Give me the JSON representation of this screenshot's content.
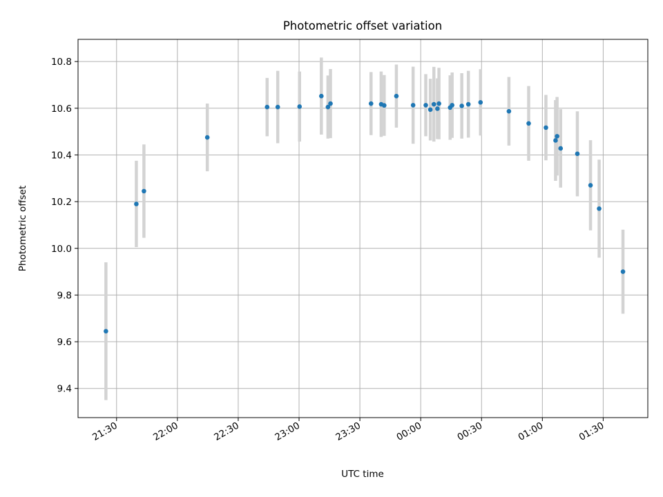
{
  "chart_data": {
    "type": "scatter",
    "title": "Photometric offset variation",
    "xlabel": "UTC time",
    "ylabel": "Photometric offset",
    "x_unit": "HH:MM UTC (night spans midnight)",
    "xlim": [
      "21:11",
      "01:52"
    ],
    "ylim": [
      9.275,
      10.895
    ],
    "x_ticks": [
      "21:30",
      "22:00",
      "22:30",
      "23:00",
      "23:30",
      "00:00",
      "00:30",
      "01:00",
      "01:30"
    ],
    "y_ticks": [
      9.4,
      9.6,
      9.8,
      10.0,
      10.2,
      10.4,
      10.6,
      10.8
    ],
    "y_tick_labels": [
      "9.4",
      "9.6",
      "9.8",
      "10.0",
      "10.2",
      "10.4",
      "10.6",
      "10.8"
    ],
    "grid": true,
    "colors": {
      "point": "#1f77b4",
      "errorbar": "#d3d3d3",
      "grid": "#b0b0b0"
    },
    "series": [
      {
        "points": [
          {
            "t": "21:24:45",
            "y": 9.645,
            "err": 0.295
          },
          {
            "t": "21:39:45",
            "y": 10.19,
            "err": 0.185
          },
          {
            "t": "21:43:30",
            "y": 10.245,
            "err": 0.2
          },
          {
            "t": "22:14:45",
            "y": 10.475,
            "err": 0.145
          },
          {
            "t": "22:44:15",
            "y": 10.605,
            "err": 0.125
          },
          {
            "t": "22:49:30",
            "y": 10.605,
            "err": 0.155
          },
          {
            "t": "23:00:15",
            "y": 10.607,
            "err": 0.15
          },
          {
            "t": "23:11:00",
            "y": 10.652,
            "err": 0.165
          },
          {
            "t": "23:14:15",
            "y": 10.605,
            "err": 0.135
          },
          {
            "t": "23:15:30",
            "y": 10.62,
            "err": 0.148
          },
          {
            "t": "23:35:30",
            "y": 10.62,
            "err": 0.135
          },
          {
            "t": "23:40:30",
            "y": 10.617,
            "err": 0.14
          },
          {
            "t": "23:42:00",
            "y": 10.612,
            "err": 0.13
          },
          {
            "t": "23:48:00",
            "y": 10.652,
            "err": 0.135
          },
          {
            "t": "23:56:15",
            "y": 10.613,
            "err": 0.165
          },
          {
            "t": "00:02:30",
            "y": 10.613,
            "err": 0.133
          },
          {
            "t": "00:04:45",
            "y": 10.594,
            "err": 0.132
          },
          {
            "t": "00:06:30",
            "y": 10.617,
            "err": 0.16
          },
          {
            "t": "00:08:15",
            "y": 10.598,
            "err": 0.13
          },
          {
            "t": "00:09:00",
            "y": 10.62,
            "err": 0.153
          },
          {
            "t": "00:14:30",
            "y": 10.603,
            "err": 0.138
          },
          {
            "t": "00:15:30",
            "y": 10.613,
            "err": 0.14
          },
          {
            "t": "00:20:15",
            "y": 10.61,
            "err": 0.14
          },
          {
            "t": "00:23:30",
            "y": 10.617,
            "err": 0.143
          },
          {
            "t": "00:29:30",
            "y": 10.625,
            "err": 0.142
          },
          {
            "t": "00:43:30",
            "y": 10.587,
            "err": 0.147
          },
          {
            "t": "00:53:15",
            "y": 10.535,
            "err": 0.16
          },
          {
            "t": "01:01:45",
            "y": 10.517,
            "err": 0.14
          },
          {
            "t": "01:06:30",
            "y": 10.462,
            "err": 0.173
          },
          {
            "t": "01:07:15",
            "y": 10.48,
            "err": 0.168
          },
          {
            "t": "01:09:00",
            "y": 10.428,
            "err": 0.168
          },
          {
            "t": "01:17:15",
            "y": 10.405,
            "err": 0.182
          },
          {
            "t": "01:23:45",
            "y": 10.27,
            "err": 0.193
          },
          {
            "t": "01:28:00",
            "y": 10.17,
            "err": 0.21
          },
          {
            "t": "01:39:45",
            "y": 9.9,
            "err": 0.18
          }
        ]
      }
    ]
  }
}
